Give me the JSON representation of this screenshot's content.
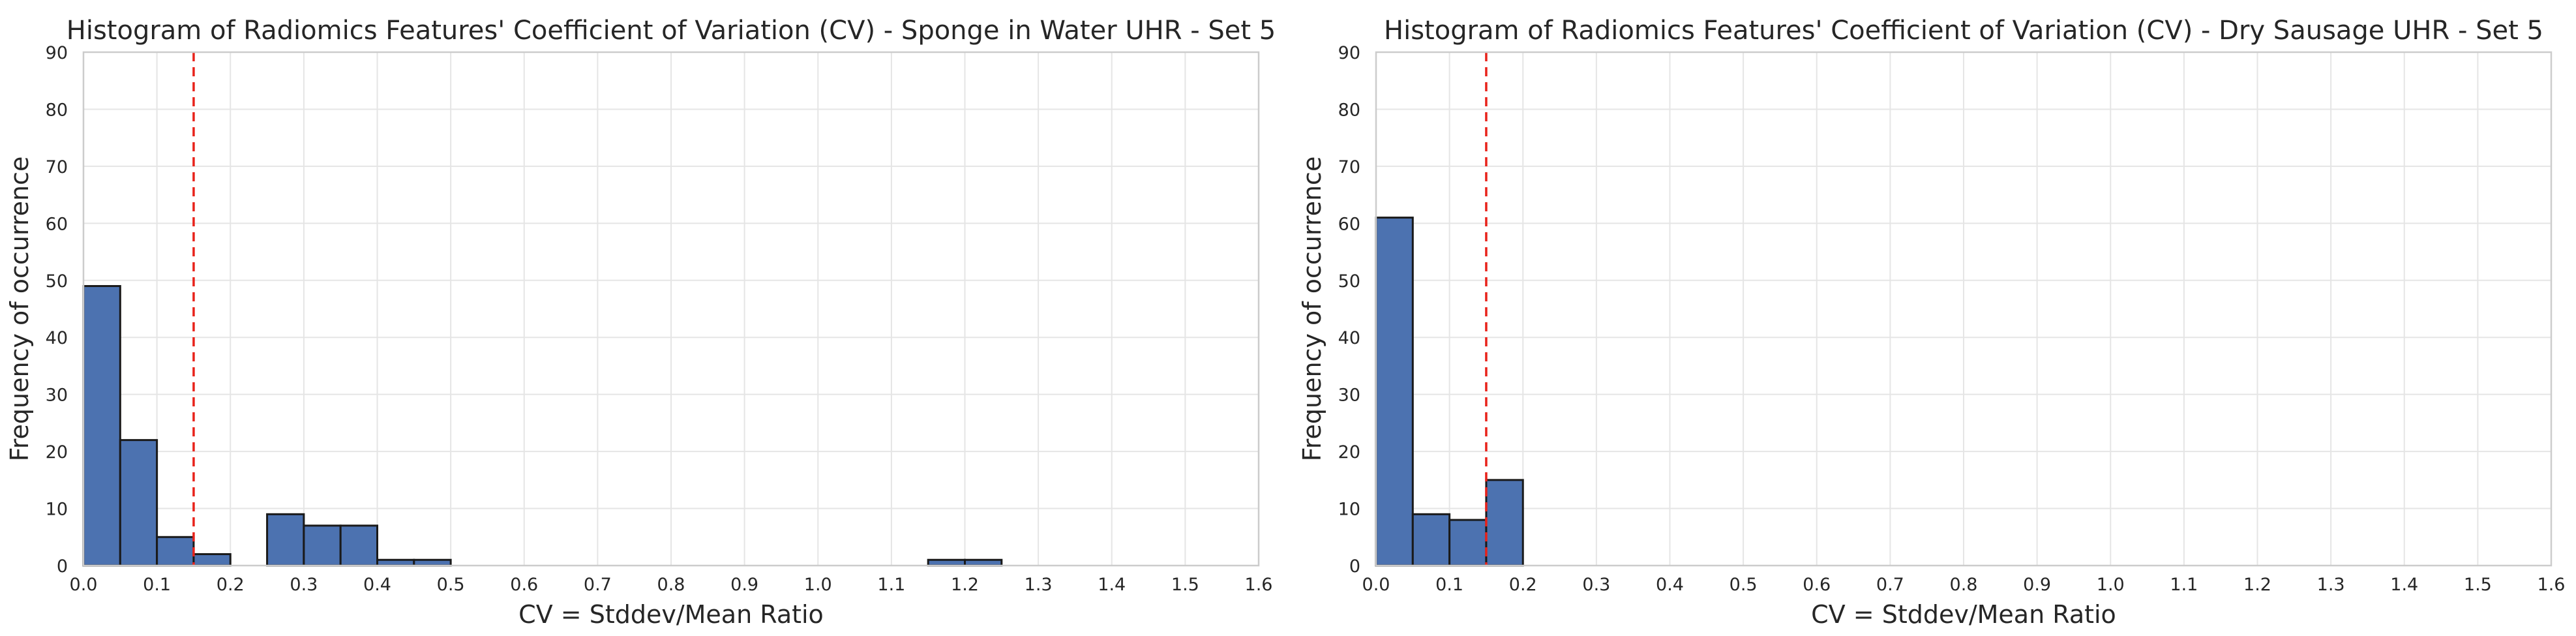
{
  "chart_data": [
    {
      "type": "bar",
      "title": "Histogram of Radiomics Features' Coefficient of Variation (CV) - Sponge in Water UHR - Set 5",
      "xlabel": "CV = Stddev/Mean Ratio",
      "ylabel": "Frequency of occurrence",
      "xlim": [
        0,
        1.6
      ],
      "ylim": [
        0,
        90
      ],
      "xticks": [
        "0.0",
        "0.1",
        "0.2",
        "0.3",
        "0.4",
        "0.5",
        "0.6",
        "0.7",
        "0.8",
        "0.9",
        "1.0",
        "1.1",
        "1.2",
        "1.3",
        "1.4",
        "1.5",
        "1.6"
      ],
      "yticks": [
        "0",
        "10",
        "20",
        "30",
        "40",
        "50",
        "60",
        "70",
        "80",
        "90"
      ],
      "grid": true,
      "threshold": 0.15,
      "bins": [
        {
          "start": 0.0,
          "end": 0.05,
          "count": 49
        },
        {
          "start": 0.05,
          "end": 0.1,
          "count": 22
        },
        {
          "start": 0.1,
          "end": 0.15,
          "count": 5
        },
        {
          "start": 0.15,
          "end": 0.2,
          "count": 2
        },
        {
          "start": 0.25,
          "end": 0.3,
          "count": 9
        },
        {
          "start": 0.3,
          "end": 0.35,
          "count": 7
        },
        {
          "start": 0.35,
          "end": 0.4,
          "count": 7
        },
        {
          "start": 0.4,
          "end": 0.45,
          "count": 1
        },
        {
          "start": 0.45,
          "end": 0.5,
          "count": 1
        },
        {
          "start": 1.15,
          "end": 1.2,
          "count": 1
        },
        {
          "start": 1.2,
          "end": 1.25,
          "count": 1
        }
      ]
    },
    {
      "type": "bar",
      "title": "Histogram of Radiomics Features' Coefficient of Variation (CV) - Dry Sausage UHR - Set 5",
      "xlabel": "CV = Stddev/Mean Ratio",
      "ylabel": "Frequency of occurrence",
      "xlim": [
        0,
        1.6
      ],
      "ylim": [
        0,
        90
      ],
      "xticks": [
        "0.0",
        "0.1",
        "0.2",
        "0.3",
        "0.4",
        "0.5",
        "0.6",
        "0.7",
        "0.8",
        "0.9",
        "1.0",
        "1.1",
        "1.2",
        "1.3",
        "1.4",
        "1.5",
        "1.6"
      ],
      "yticks": [
        "0",
        "10",
        "20",
        "30",
        "40",
        "50",
        "60",
        "70",
        "80",
        "90"
      ],
      "grid": true,
      "threshold": 0.15,
      "bins": [
        {
          "start": 0.0,
          "end": 0.05,
          "count": 61
        },
        {
          "start": 0.05,
          "end": 0.1,
          "count": 9
        },
        {
          "start": 0.1,
          "end": 0.15,
          "count": 8
        },
        {
          "start": 0.15,
          "end": 0.2,
          "count": 15
        }
      ]
    }
  ],
  "colors": {
    "bar": "#4c72b0",
    "threshold_line": "#e8221a"
  }
}
